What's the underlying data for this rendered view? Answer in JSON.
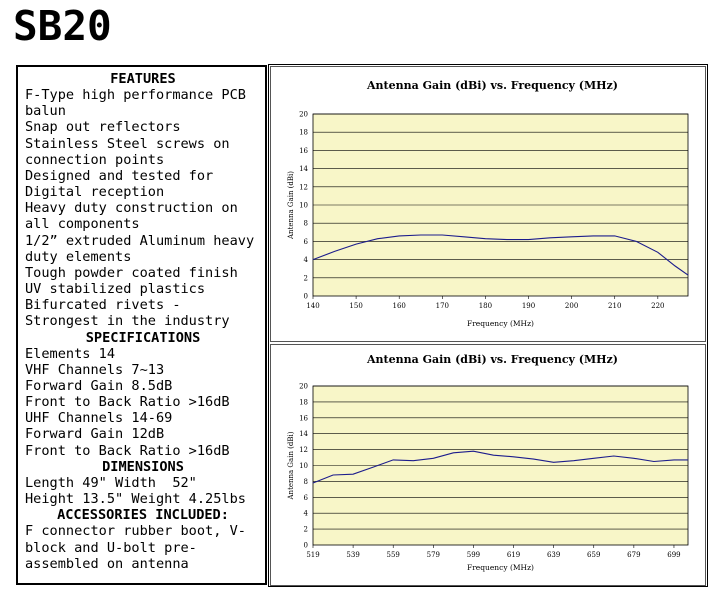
{
  "page": {
    "title": "SB20"
  },
  "specs": {
    "lines": [
      {
        "kind": "hd",
        "text": "FEATURES"
      },
      {
        "kind": "ln",
        "text": "F-Type high performance PCB"
      },
      {
        "kind": "ln",
        "text": "balun"
      },
      {
        "kind": "ln",
        "text": "Snap out reflectors"
      },
      {
        "kind": "ln",
        "text": "Stainless Steel screws on"
      },
      {
        "kind": "ln",
        "text": "connection points"
      },
      {
        "kind": "ln",
        "text": "Designed and tested for"
      },
      {
        "kind": "ln",
        "text": "Digital reception"
      },
      {
        "kind": "ln",
        "text": "Heavy duty construction on"
      },
      {
        "kind": "ln",
        "text": "all components"
      },
      {
        "kind": "ln",
        "text": "1/2” extruded Aluminum heavy"
      },
      {
        "kind": "ln",
        "text": "duty elements"
      },
      {
        "kind": "ln",
        "text": "Tough powder coated finish"
      },
      {
        "kind": "ln",
        "text": "UV stabilized plastics"
      },
      {
        "kind": "ln",
        "text": "Bifurcated rivets -"
      },
      {
        "kind": "ln",
        "text": "Strongest in the industry"
      },
      {
        "kind": "hd",
        "text": "SPECIFICATIONS"
      },
      {
        "kind": "ln",
        "text": "Elements 14"
      },
      {
        "kind": "ln",
        "text": "VHF Channels 7~13"
      },
      {
        "kind": "ln",
        "text": "Forward Gain 8.5dB"
      },
      {
        "kind": "ln",
        "text": "Front to Back Ratio >16dB"
      },
      {
        "kind": "ln",
        "text": "UHF Channels 14-69"
      },
      {
        "kind": "ln",
        "text": "Forward Gain 12dB"
      },
      {
        "kind": "ln",
        "text": "Front to Back Ratio >16dB"
      },
      {
        "kind": "hd",
        "text": "DIMENSIONS"
      },
      {
        "kind": "ln",
        "text": "Length 49\" Width  52\""
      },
      {
        "kind": "ln",
        "text": "Height 13.5\" Weight 4.25lbs"
      },
      {
        "kind": "hd",
        "text": "ACCESSORIES INCLUDED:"
      },
      {
        "kind": "ln",
        "text": "F connector rubber boot, V-"
      },
      {
        "kind": "ln",
        "text": "block and U-bolt pre-"
      },
      {
        "kind": "ln",
        "text": "assembled on antenna"
      }
    ]
  },
  "colors": {
    "plot_bg": "#f8f6c8",
    "line": "#1c1c8c",
    "grid": "#000000"
  },
  "chart_data": [
    {
      "type": "line",
      "title": "Antenna Gain (dBi) vs. Frequency (MHz)",
      "xlabel": "Frequency (MHz)",
      "ylabel": "Antenna Gain (dBi)",
      "xlim": [
        140,
        227
      ],
      "ylim": [
        0,
        20
      ],
      "xticks": [
        140,
        150,
        160,
        170,
        180,
        190,
        200,
        210,
        220
      ],
      "yticks": [
        0,
        2,
        4,
        6,
        8,
        10,
        12,
        14,
        16,
        18,
        20
      ],
      "grid": true,
      "x": [
        140,
        145,
        150,
        155,
        160,
        165,
        170,
        175,
        180,
        185,
        190,
        195,
        200,
        205,
        210,
        215,
        220,
        224,
        227
      ],
      "y": [
        4.0,
        4.9,
        5.7,
        6.3,
        6.6,
        6.7,
        6.7,
        6.5,
        6.3,
        6.2,
        6.2,
        6.4,
        6.5,
        6.6,
        6.6,
        6.0,
        4.8,
        3.3,
        2.3
      ]
    },
    {
      "type": "line",
      "title": "Antenna Gain (dBi) vs. Frequency (MHz)",
      "xlabel": "Frequency (MHz)",
      "ylabel": "Antenna Gain (dBi)",
      "xlim": [
        519,
        706
      ],
      "ylim": [
        0,
        20
      ],
      "xticks": [
        519,
        539,
        559,
        579,
        599,
        619,
        639,
        659,
        679,
        699
      ],
      "yticks": [
        0,
        2,
        4,
        6,
        8,
        10,
        12,
        14,
        16,
        18,
        20
      ],
      "grid": true,
      "x": [
        519,
        529,
        539,
        549,
        559,
        569,
        579,
        589,
        599,
        609,
        619,
        629,
        639,
        649,
        659,
        669,
        679,
        689,
        699,
        706
      ],
      "y": [
        7.8,
        8.8,
        8.9,
        9.8,
        10.7,
        10.6,
        10.9,
        11.6,
        11.8,
        11.3,
        11.1,
        10.8,
        10.4,
        10.6,
        10.9,
        11.2,
        10.9,
        10.5,
        10.7,
        10.7
      ]
    }
  ]
}
